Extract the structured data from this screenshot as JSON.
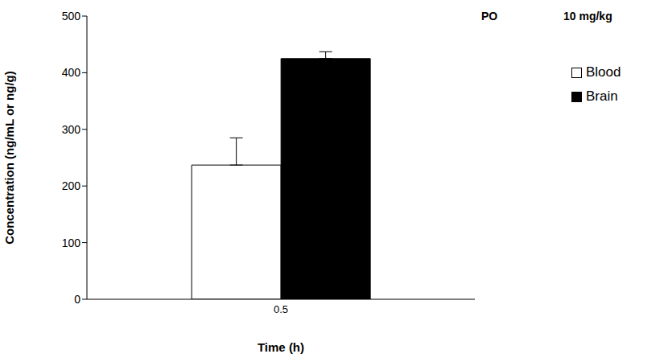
{
  "chart_data": {
    "type": "bar",
    "annotations": [
      "PO",
      "10 mg/kg"
    ],
    "x_label": "Time (h)",
    "y_label": "Concentration (ng/mL or ng/g)",
    "categories": [
      "0.5"
    ],
    "series": [
      {
        "name": "Blood",
        "color": "#ffffff",
        "values": [
          237
        ],
        "error": [
          48
        ]
      },
      {
        "name": "Brain",
        "color": "#000000",
        "values": [
          425
        ],
        "error": [
          12
        ]
      }
    ],
    "ylim": [
      0,
      500
    ],
    "yticks": [
      0,
      100,
      200,
      300,
      400,
      500
    ],
    "grid": false,
    "legend": "right"
  }
}
